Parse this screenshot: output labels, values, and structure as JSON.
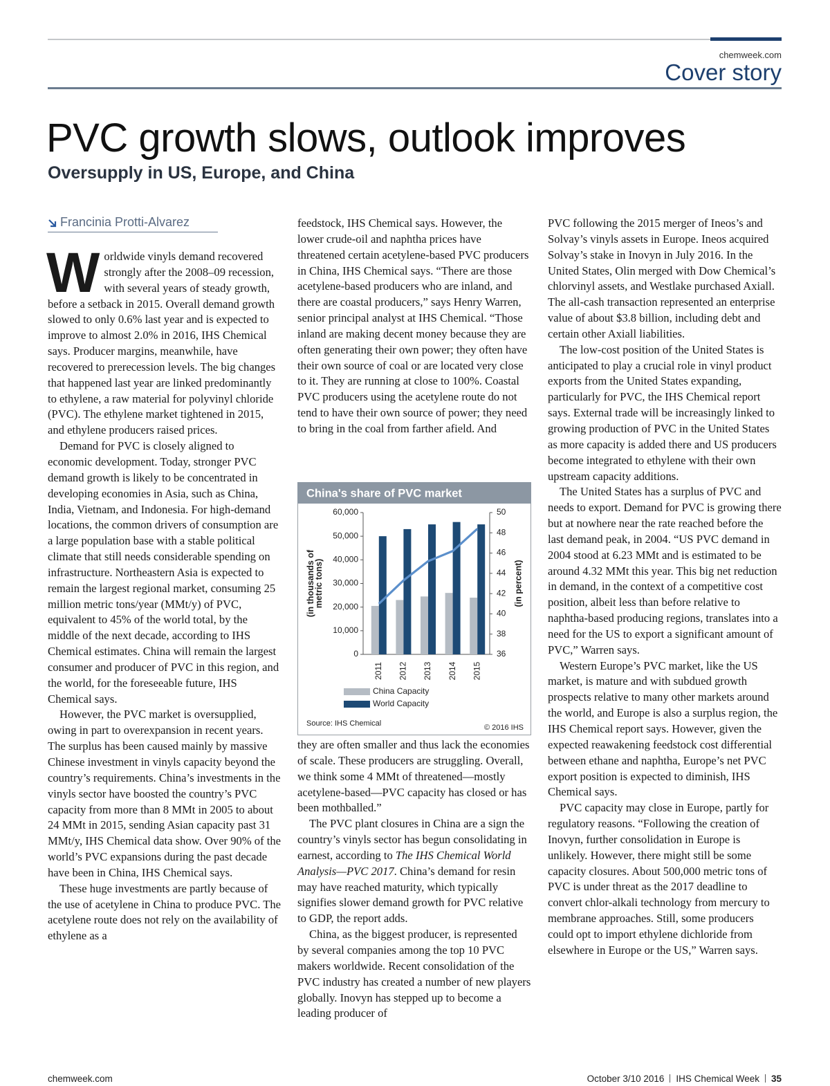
{
  "header": {
    "site": "chemweek.com",
    "section": "Cover story"
  },
  "title": "PVC growth slows, outlook improves",
  "subtitle": "Oversupply in US, Europe, and China",
  "author": "Francinia Protti-Alvarez",
  "drop_cap": "W",
  "column1": [
    [
      "orldwide vinyls demand recovered strongly after the 2008–09 recession, with several years of steady growth, before a setback in 2015. Overall demand growth slowed to only 0.6% last year and is expected to improve to almost 2.0% in 2016, IHS Chemical says. Producer margins, meanwhile, have recovered to prerecession levels. The big changes that happened last year are linked predominantly to ethylene, a raw material for polyvinyl chloride (PVC). The ethylene market tightened in 2015, and ethylene producers raised prices."
    ],
    [
      "Demand for PVC is closely aligned to economic development. Today, stronger PVC demand growth is likely to be concentrated in developing economies in Asia, such as China, India, Vietnam, and Indonesia. For high-demand locations, the common drivers of consumption are a large population base with a stable political climate that still needs considerable spending on infrastructure. Northeastern Asia is expected to remain the largest regional market, consuming 25 million metric tons/year (MMt/y) of PVC, equivalent to 45% of the world total, by the middle of the next decade, according to IHS Chemical estimates. China will remain the largest consumer and producer of PVC in this region, and the world, for the foreseeable future, IHS Chemical says."
    ],
    [
      "However, the PVC market is oversupplied, owing in part to overexpansion in recent years. The surplus has been caused mainly by massive Chinese investment in vinyls capacity beyond the country’s requirements. China’s investments in the vinyls sector have boosted the country’s PVC capacity from more than 8 MMt in 2005 to about 24 MMt in 2015, sending Asian capacity past 31 MMt/y, IHS Chemical data show. Over 90% of the world’s PVC expansions during the past decade have been in China, IHS Chemical says."
    ],
    [
      "These huge investments are partly because of the use of acetylene in China to produce PVC. The acetylene route does not rely on the availability of ethylene as a"
    ]
  ],
  "column2_top": [
    [
      "feedstock, IHS Chemical says. However, the lower crude-oil and naphtha prices have threatened certain acetylene-based PVC producers in China, IHS Chemical says. “There are those acetylene-based producers who are inland, and there are coastal producers,” says Henry Warren, senior principal analyst at IHS Chemical. “Those inland are making decent money because they are often generating their own power; they often have their own source of coal or are located very close to it. They are running at close to 100%. Coastal PVC producers using the acetylene route do not tend to have their own source of power; they need to bring in the coal from farther afield. And"
    ]
  ],
  "column2_bottom": [
    [
      "they are often smaller and thus lack the economies of scale. These producers are struggling. Overall, we think some 4 MMt of threatened—mostly acetylene-based—PVC capacity has closed or has been mothballed.”"
    ],
    [
      "The PVC plant closures in China are a sign the country’s vinyls sector has begun consolidating in earnest, according to ",
      "The IHS Chemical World Analysis—PVC 2017",
      ". China’s demand for resin may have reached maturity, which typically signifies slower demand growth for PVC relative to GDP, the report adds."
    ],
    [
      "China, as the biggest producer, is represented by several companies among the top 10 PVC makers worldwide. Recent consolidation of the PVC industry has created a number of new players globally. Inovyn has stepped up to become a leading producer of"
    ]
  ],
  "column3": [
    [
      "PVC following the 2015 merger of Ineos’s and Solvay’s vinyls assets in Europe. Ineos acquired Solvay’s stake in Inovyn in July 2016. In the United States,  Olin merged with Dow Chemical’s chlorvinyl assets, and Westlake purchased Axiall. The all-cash transaction represented an enterprise value of about $3.8 billion, including debt and certain other Axiall liabilities."
    ],
    [
      "The low-cost position of the United States is anticipated to play a crucial role in vinyl product exports from the United States expanding, particularly for PVC, the IHS Chemical report says. External trade will be increasingly linked to growing production of PVC in the United States as more capacity is added there and US producers become integrated to ethylene with their own upstream capacity additions."
    ],
    [
      "The United States has a surplus of PVC and needs to export. Demand for PVC is growing there but at nowhere near the rate reached before the last demand peak, in 2004. “US PVC demand in 2004 stood at 6.23 MMt and is estimated to be around 4.32 MMt this year. This big net reduction in demand, in the context of a competitive cost position, albeit less than before relative to naphtha-based producing regions, translates into a need for the US to export a significant amount of PVC,” Warren says."
    ],
    [
      "Western Europe’s PVC market, like the US market, is mature and with subdued growth prospects relative to many other markets around the world, and Europe is also a surplus region, the IHS Chemical report says. However, given the expected reawakening feedstock cost differential between ethane and naphtha, Europe’s net PVC export position is expected to diminish, IHS Chemical says."
    ],
    [
      "PVC capacity may close in Europe, partly for regulatory reasons. “Following the creation of Inovyn, further consolidation in Europe is unlikely. However, there might still be some capacity closures. About 500,000 metric tons of PVC is under threat as the 2017 deadline to convert chlor-alkali technology from mercury to membrane approaches. Still, some producers could opt to import ethylene dichloride from elsewhere in Europe or the US,” Warren says."
    ]
  ],
  "chart_data": {
    "type": "bar",
    "title": "China's share of PVC market",
    "categories": [
      "2011",
      "2012",
      "2013",
      "2014",
      "2015"
    ],
    "series": [
      {
        "name": "China Capacity",
        "color": "#b5bcc4",
        "values": [
          20500,
          23000,
          24500,
          26000,
          24000
        ]
      },
      {
        "name": "World Capacity",
        "color": "#1d4a75",
        "values": [
          50000,
          53000,
          55000,
          56000,
          55000
        ]
      },
      {
        "type": "line",
        "axis": "y2",
        "color": "#5b8fcb",
        "values": [
          41,
          43.3,
          45.2,
          46.2,
          48.4
        ]
      }
    ],
    "ylabel": [
      "(in thousands of",
      "metric tons)"
    ],
    "y2label": "(in percent)",
    "ylim": [
      0,
      60000
    ],
    "yticks": [
      0,
      {
        "value": 10000,
        "label": "10,000"
      },
      {
        "value": 20000,
        "label": "20,000"
      },
      {
        "value": 30000,
        "label": "30,000"
      },
      {
        "value": 40000,
        "label": "40,000"
      },
      {
        "value": 50000,
        "label": "50,000"
      },
      {
        "value": 60000,
        "label": "60,000"
      }
    ],
    "y2lim": [
      36,
      50
    ],
    "y2ticks": [
      36,
      38,
      40,
      42,
      44,
      46,
      48,
      50
    ],
    "source": "Source: IHS Chemical",
    "copyright": "© 2016 IHS"
  },
  "footer": {
    "left": "chemweek.com",
    "date": "October 3/10 2016",
    "publication": "IHS Chemical Week",
    "page": "35"
  }
}
